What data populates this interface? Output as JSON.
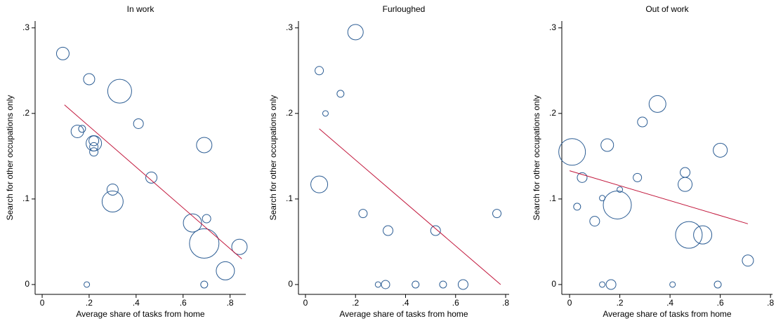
{
  "chart_data": [
    {
      "type": "scatter",
      "title": "In work",
      "xlabel": "Average share of tasks from home",
      "ylabel": "Search for other occupations only",
      "xlim": [
        -0.03,
        0.867
      ],
      "ylim": [
        -0.0115,
        0.308
      ],
      "xticks": [
        0,
        {
          "value": 0.2,
          "label": ".2"
        },
        {
          "value": 0.4,
          "label": ".4"
        },
        {
          "value": 0.6,
          "label": ".6"
        },
        {
          "value": 0.8,
          "label": ".8"
        }
      ],
      "yticks": [
        0,
        {
          "value": 0.1,
          "label": ".1"
        },
        {
          "value": 0.2,
          "label": ".2"
        },
        {
          "value": 0.3,
          "label": ".3"
        }
      ],
      "color": "#2c5d94",
      "fit_color": "#c1153a",
      "x": [
        0.088,
        0.2,
        0.33,
        0.41,
        0.15,
        0.17,
        0.22,
        0.22,
        0.22,
        0.22,
        0.465,
        0.3,
        0.3,
        0.69,
        0.64,
        0.7,
        0.69,
        0.78,
        0.84,
        0.19,
        0.69
      ],
      "values": [
        0.27,
        0.24,
        0.226,
        0.188,
        0.179,
        0.182,
        0.165,
        0.168,
        0.161,
        0.155,
        0.125,
        0.111,
        0.097,
        0.163,
        0.072,
        0.077,
        0.048,
        0.016,
        0.044,
        0,
        0
      ],
      "sizes": [
        9,
        8,
        17,
        7,
        9,
        5,
        11,
        7,
        6,
        6,
        8,
        8,
        15,
        11,
        13,
        6,
        21,
        13,
        11,
        4,
        5
      ],
      "fit": {
        "x": [
          0.095,
          0.85
        ],
        "y": [
          0.21,
          0.03
        ]
      }
    },
    {
      "type": "scatter",
      "title": "Furloughed",
      "xlabel": "Average share of tasks from home",
      "ylabel": "Search for other occupations only",
      "xlim": [
        -0.028,
        0.814
      ],
      "ylim": [
        -0.0115,
        0.308
      ],
      "xticks": [
        0,
        {
          "value": 0.2,
          "label": ".2"
        },
        {
          "value": 0.4,
          "label": ".4"
        },
        {
          "value": 0.6,
          "label": ".6"
        },
        {
          "value": 0.8,
          "label": ".8"
        }
      ],
      "yticks": [
        0,
        {
          "value": 0.1,
          "label": ".1"
        },
        {
          "value": 0.2,
          "label": ".2"
        },
        {
          "value": 0.3,
          "label": ".3"
        }
      ],
      "color": "#2c5d94",
      "fit_color": "#c1153a",
      "x": [
        0.055,
        0.14,
        0.08,
        0.2,
        0.055,
        0.23,
        0.33,
        0.52,
        0.765,
        0.29,
        0.32,
        0.44,
        0.55,
        0.63
      ],
      "values": [
        0.25,
        0.223,
        0.2,
        0.295,
        0.117,
        0.083,
        0.063,
        0.063,
        0.083,
        0,
        0,
        0,
        0,
        0
      ],
      "sizes": [
        6,
        5,
        4,
        11,
        12,
        6,
        7,
        7,
        6,
        4,
        6,
        5,
        5,
        7
      ],
      "fit": {
        "x": [
          0.055,
          0.78
        ],
        "y": [
          0.182,
          0
        ]
      }
    },
    {
      "type": "scatter",
      "title": "Out of work",
      "xlabel": "Average share of tasks from home",
      "ylabel": "Search for other occupations only",
      "xlim": [
        -0.031,
        0.808
      ],
      "ylim": [
        -0.0115,
        0.308
      ],
      "xticks": [
        0,
        {
          "value": 0.2,
          "label": ".2"
        },
        {
          "value": 0.4,
          "label": ".4"
        },
        {
          "value": 0.6,
          "label": ".6"
        },
        {
          "value": 0.8,
          "label": ".8"
        }
      ],
      "yticks": [
        0,
        {
          "value": 0.1,
          "label": ".1"
        },
        {
          "value": 0.2,
          "label": ".2"
        },
        {
          "value": 0.3,
          "label": ".3"
        }
      ],
      "color": "#2c5d94",
      "fit_color": "#c1153a",
      "x": [
        0.01,
        0.03,
        0.05,
        0.1,
        0.15,
        0.13,
        0.2,
        0.19,
        0.165,
        0.13,
        0.29,
        0.27,
        0.35,
        0.46,
        0.46,
        0.41,
        0.475,
        0.53,
        0.6,
        0.59,
        0.71
      ],
      "values": [
        0.155,
        0.091,
        0.125,
        0.074,
        0.163,
        0.101,
        0.111,
        0.093,
        0,
        0,
        0.19,
        0.125,
        0.211,
        0.131,
        0.117,
        0,
        0.058,
        0.058,
        0.157,
        0,
        0.028
      ],
      "sizes": [
        19,
        5,
        7,
        7,
        9,
        4,
        4,
        20,
        7,
        4,
        7,
        6,
        12,
        7,
        10,
        4,
        19,
        13,
        10,
        5,
        8
      ],
      "fit": {
        "x": [
          0,
          0.71
        ],
        "y": [
          0.133,
          0.071
        ]
      }
    }
  ]
}
